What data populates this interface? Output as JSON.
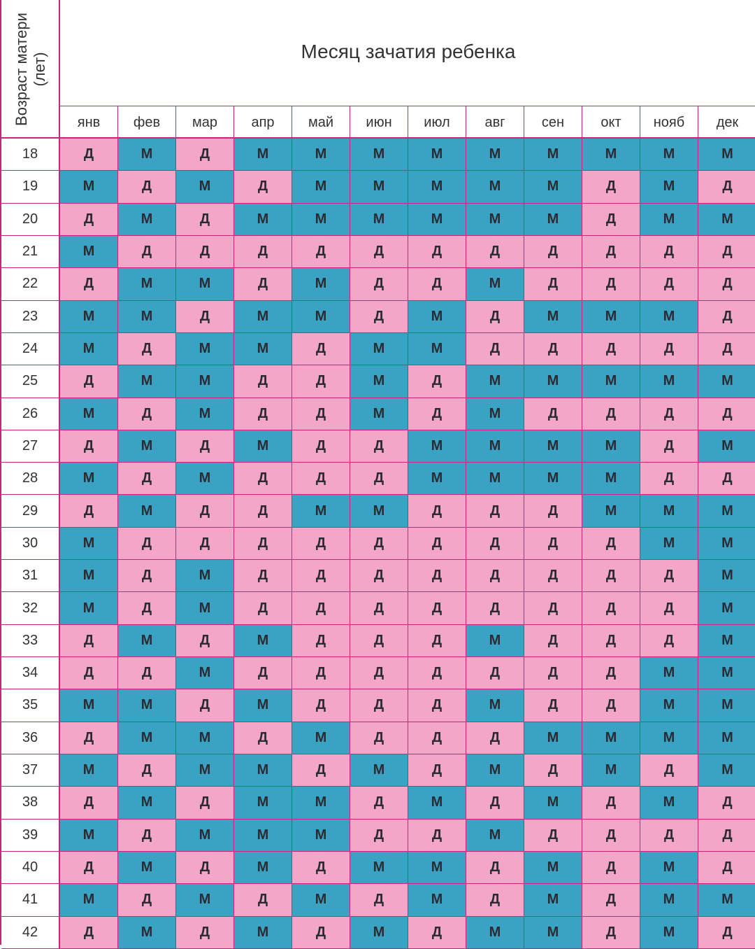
{
  "title": "Месяц зачатия ребенка",
  "age_header": {
    "line1": "Возраст матери",
    "line2": "(лет)"
  },
  "months": [
    "янв",
    "фев",
    "мар",
    "апр",
    "май",
    "июн",
    "июл",
    "авг",
    "сен",
    "окт",
    "нояб",
    "дек"
  ],
  "colors": {
    "boy": "#3aa3c4",
    "girl": "#f4a6c8",
    "border": "#c9267a"
  },
  "legend_values": {
    "boy": "М",
    "girl": "Д"
  },
  "rows": [
    {
      "age": "18",
      "cells": [
        "Д",
        "М",
        "Д",
        "М",
        "М",
        "М",
        "М",
        "М",
        "М",
        "М",
        "М",
        "М"
      ]
    },
    {
      "age": "19",
      "cells": [
        "М",
        "Д",
        "М",
        "Д",
        "М",
        "М",
        "М",
        "М",
        "М",
        "Д",
        "М",
        "Д"
      ]
    },
    {
      "age": "20",
      "cells": [
        "Д",
        "М",
        "Д",
        "М",
        "М",
        "М",
        "М",
        "М",
        "М",
        "Д",
        "М",
        "М"
      ]
    },
    {
      "age": "21",
      "cells": [
        "М",
        "Д",
        "Д",
        "Д",
        "Д",
        "Д",
        "Д",
        "Д",
        "Д",
        "Д",
        "Д",
        "Д"
      ]
    },
    {
      "age": "22",
      "cells": [
        "Д",
        "М",
        "М",
        "Д",
        "М",
        "Д",
        "Д",
        "М",
        "Д",
        "Д",
        "Д",
        "Д"
      ]
    },
    {
      "age": "23",
      "cells": [
        "М",
        "М",
        "Д",
        "М",
        "М",
        "Д",
        "М",
        "Д",
        "М",
        "М",
        "М",
        "Д"
      ]
    },
    {
      "age": "24",
      "cells": [
        "М",
        "Д",
        "М",
        "М",
        "Д",
        "М",
        "М",
        "Д",
        "Д",
        "Д",
        "Д",
        "Д"
      ]
    },
    {
      "age": "25",
      "cells": [
        "Д",
        "М",
        "М",
        "Д",
        "Д",
        "М",
        "Д",
        "М",
        "М",
        "М",
        "М",
        "М"
      ]
    },
    {
      "age": "26",
      "cells": [
        "М",
        "Д",
        "М",
        "Д",
        "Д",
        "М",
        "Д",
        "М",
        "Д",
        "Д",
        "Д",
        "Д"
      ]
    },
    {
      "age": "27",
      "cells": [
        "Д",
        "М",
        "Д",
        "М",
        "Д",
        "Д",
        "М",
        "М",
        "М",
        "М",
        "Д",
        "М"
      ]
    },
    {
      "age": "28",
      "cells": [
        "М",
        "Д",
        "М",
        "Д",
        "Д",
        "Д",
        "М",
        "М",
        "М",
        "М",
        "Д",
        "Д"
      ]
    },
    {
      "age": "29",
      "cells": [
        "Д",
        "М",
        "Д",
        "Д",
        "М",
        "М",
        "Д",
        "Д",
        "Д",
        "М",
        "М",
        "М"
      ]
    },
    {
      "age": "30",
      "cells": [
        "М",
        "Д",
        "Д",
        "Д",
        "Д",
        "Д",
        "Д",
        "Д",
        "Д",
        "Д",
        "М",
        "М"
      ]
    },
    {
      "age": "31",
      "cells": [
        "М",
        "Д",
        "М",
        "Д",
        "Д",
        "Д",
        "Д",
        "Д",
        "Д",
        "Д",
        "Д",
        "М"
      ]
    },
    {
      "age": "32",
      "cells": [
        "М",
        "Д",
        "М",
        "Д",
        "Д",
        "Д",
        "Д",
        "Д",
        "Д",
        "Д",
        "Д",
        "М"
      ]
    },
    {
      "age": "33",
      "cells": [
        "Д",
        "М",
        "Д",
        "М",
        "Д",
        "Д",
        "Д",
        "М",
        "Д",
        "Д",
        "Д",
        "М"
      ]
    },
    {
      "age": "34",
      "cells": [
        "Д",
        "Д",
        "М",
        "Д",
        "Д",
        "Д",
        "Д",
        "Д",
        "Д",
        "Д",
        "М",
        "М"
      ]
    },
    {
      "age": "35",
      "cells": [
        "М",
        "М",
        "Д",
        "М",
        "Д",
        "Д",
        "Д",
        "М",
        "Д",
        "Д",
        "М",
        "М"
      ]
    },
    {
      "age": "36",
      "cells": [
        "Д",
        "М",
        "М",
        "Д",
        "М",
        "Д",
        "Д",
        "Д",
        "М",
        "М",
        "М",
        "М"
      ]
    },
    {
      "age": "37",
      "cells": [
        "М",
        "Д",
        "М",
        "М",
        "Д",
        "М",
        "Д",
        "М",
        "Д",
        "М",
        "Д",
        "М"
      ]
    },
    {
      "age": "38",
      "cells": [
        "Д",
        "М",
        "Д",
        "М",
        "М",
        "Д",
        "М",
        "Д",
        "М",
        "Д",
        "М",
        "Д"
      ]
    },
    {
      "age": "39",
      "cells": [
        "М",
        "Д",
        "М",
        "М",
        "М",
        "Д",
        "Д",
        "М",
        "Д",
        "Д",
        "Д",
        "Д"
      ]
    },
    {
      "age": "40",
      "cells": [
        "Д",
        "М",
        "Д",
        "М",
        "Д",
        "М",
        "М",
        "Д",
        "М",
        "Д",
        "М",
        "Д"
      ]
    },
    {
      "age": "41",
      "cells": [
        "М",
        "Д",
        "М",
        "Д",
        "М",
        "Д",
        "М",
        "Д",
        "М",
        "Д",
        "М",
        "М"
      ]
    },
    {
      "age": "42",
      "cells": [
        "Д",
        "М",
        "Д",
        "М",
        "Д",
        "М",
        "Д",
        "М",
        "М",
        "Д",
        "М",
        "Д"
      ]
    }
  ]
}
